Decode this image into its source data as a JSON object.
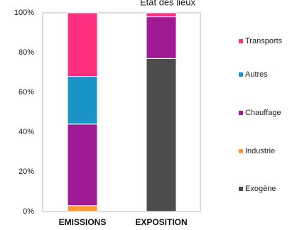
{
  "chart_data": {
    "type": "bar",
    "stacked": true,
    "title": "Etat des lieux",
    "categories": [
      "EMISSIONS",
      "EXPOSITION"
    ],
    "series": [
      {
        "name": "Exogène",
        "color": "#4d4d4d",
        "values": [
          0,
          77
        ]
      },
      {
        "name": "Industrie",
        "color": "#ff9933",
        "values": [
          3,
          0
        ]
      },
      {
        "name": "Chauffage",
        "color": "#a01a96",
        "values": [
          41,
          21
        ]
      },
      {
        "name": "Autres",
        "color": "#1a94c8",
        "values": [
          24,
          0
        ]
      },
      {
        "name": "Transports",
        "color": "#ff2f7f",
        "values": [
          32,
          2
        ]
      }
    ],
    "y_ticks": [
      "0%",
      "20%",
      "40%",
      "60%",
      "80%",
      "100%"
    ],
    "ylim": [
      0,
      100
    ],
    "legend_position": "right",
    "legend_order": [
      "Transports",
      "Autres",
      "Chauffage",
      "Industrie",
      "Exogène"
    ],
    "grid": false
  }
}
